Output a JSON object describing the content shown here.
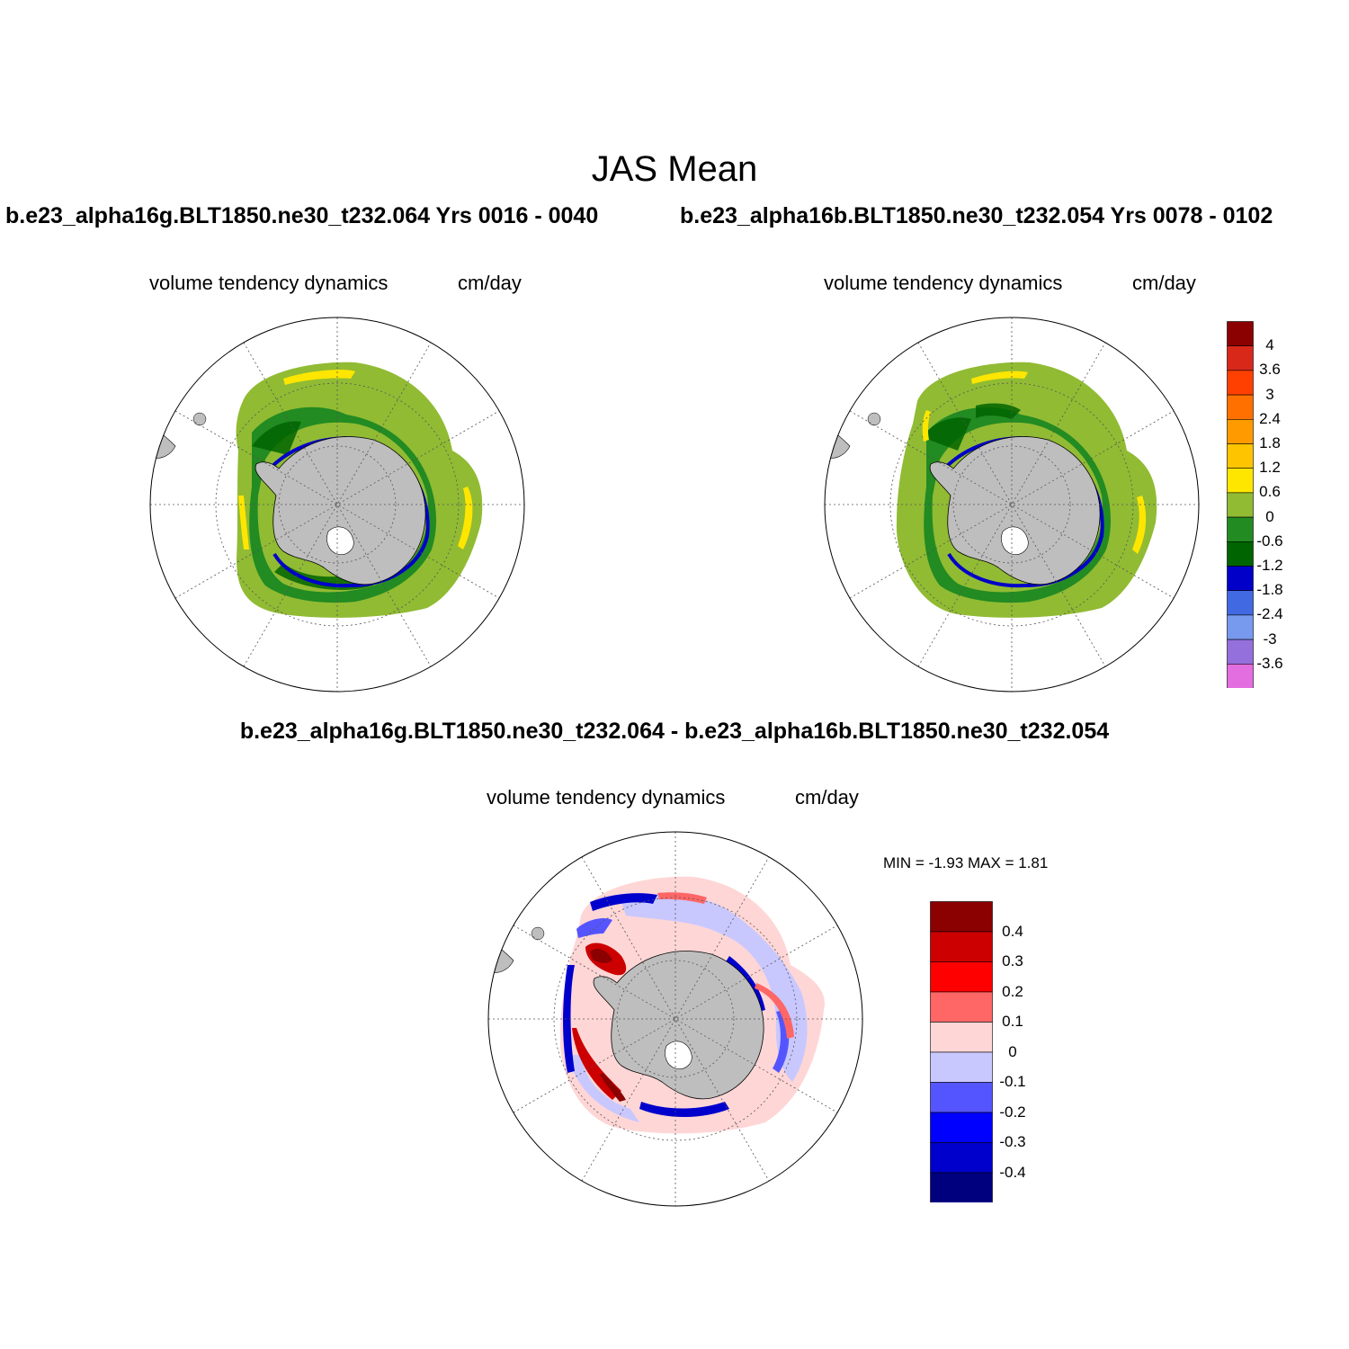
{
  "figure": {
    "title": "JAS Mean",
    "case_left": "b.e23_alpha16g.BLT1850.ne30_t232.064  Yrs 0016 - 0040",
    "case_right": "b.e23_alpha16b.BLT1850.ne30_t232.054  Yrs 0078 - 0102",
    "diff_title": "b.e23_alpha16g.BLT1850.ne30_t232.064 - b.e23_alpha16b.BLT1850.ne30_t232.054"
  },
  "panels": {
    "left": {
      "variable": "volume tendency dynamics",
      "units": "cm/day"
    },
    "right": {
      "variable": "volume tendency dynamics",
      "units": "cm/day"
    },
    "diff": {
      "variable": "volume tendency dynamics",
      "units": "cm/day",
      "minmax": "MIN =  -1.93 MAX =   1.81"
    }
  },
  "map": {
    "projection": "south polar stereographic",
    "land_color": "#bebebe",
    "ocean_background": "#ffffff",
    "gridlines": "dotted"
  },
  "colorbar_main": {
    "labels": [
      "4",
      "3.6",
      "3",
      "2.4",
      "1.8",
      "1.2",
      "0.6",
      "0",
      "-0.6",
      "-1.2",
      "-1.8",
      "-2.4",
      "-3",
      "-3.6"
    ],
    "colors": [
      "#8b0000",
      "#d7281a",
      "#ff4000",
      "#ff7000",
      "#ff9a00",
      "#ffc400",
      "#ffe600",
      "#91bb33",
      "#228b22",
      "#006400",
      "#0000c8",
      "#4169e1",
      "#7799ee",
      "#9370db",
      "#e36ee0"
    ]
  },
  "colorbar_diff": {
    "labels": [
      "0.4",
      "0.3",
      "0.2",
      "0.1",
      "0",
      "-0.1",
      "-0.2",
      "-0.3",
      "-0.4"
    ],
    "colors": [
      "#8b0000",
      "#cc0000",
      "#ff0000",
      "#ff6666",
      "#ffd6d6",
      "#c8c8ff",
      "#5555ff",
      "#0000ff",
      "#0000cc",
      "#00007f"
    ]
  }
}
